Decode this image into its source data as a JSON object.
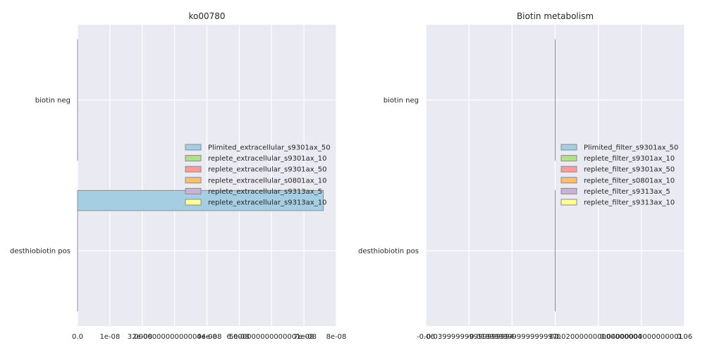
{
  "chart_data": [
    {
      "type": "bar",
      "orientation": "horizontal",
      "title": "ko00780",
      "categories": [
        "biotin neg",
        "desthiobiotin pos"
      ],
      "xlim": [
        0,
        8e-08
      ],
      "x_ticks": [
        "0.0",
        "1e-08",
        "2e-08",
        "3.0000000000000004e-08",
        "4e-08",
        "5e-08",
        "6.000000000000001e-08",
        "7e-08",
        "8e-08"
      ],
      "grid": true,
      "legend_position": "right-center",
      "series": [
        {
          "name": "Plimited_extracellular_s9301ax_50",
          "color": "#a6cee3",
          "values": [
            0,
            7.6e-08
          ]
        },
        {
          "name": "replete_extracellular_s9301ax_10",
          "color": "#b2df8a",
          "values": [
            0,
            0
          ]
        },
        {
          "name": "replete_extracellular_s9301ax_50",
          "color": "#fb9a99",
          "values": [
            0,
            0
          ]
        },
        {
          "name": "replete_extracellular_s0801ax_10",
          "color": "#fdbf6f",
          "values": [
            0,
            0
          ]
        },
        {
          "name": "replete_extracellular_s9313ax_5",
          "color": "#cab2d6",
          "values": [
            0,
            0
          ]
        },
        {
          "name": "replete_extracellular_s9313ax_10",
          "color": "#ffff99",
          "values": [
            0,
            0
          ]
        }
      ]
    },
    {
      "type": "bar",
      "orientation": "horizontal",
      "title": "Biotin metabolism",
      "categories": [
        "biotin neg",
        "desthiobiotin pos"
      ],
      "xlim": [
        -0.06,
        0.06
      ],
      "x_ticks": [
        "-0.06",
        "-0.039999999999999994",
        "-0.019999999999999997",
        "0.0",
        "0.020000000000000004",
        "0.04000000000000001",
        "0.06"
      ],
      "grid": true,
      "legend_position": "right-center",
      "series": [
        {
          "name": "Plimited_filter_s9301ax_50",
          "color": "#a6cee3",
          "values": [
            0,
            0
          ]
        },
        {
          "name": "replete_filter_s9301ax_10",
          "color": "#b2df8a",
          "values": [
            0,
            0
          ]
        },
        {
          "name": "replete_filter_s9301ax_50",
          "color": "#fb9a99",
          "values": [
            0,
            0
          ]
        },
        {
          "name": "replete_filter_s0801ax_10",
          "color": "#fdbf6f",
          "values": [
            0,
            0
          ]
        },
        {
          "name": "replete_filter_s9313ax_5",
          "color": "#cab2d6",
          "values": [
            0,
            0
          ]
        },
        {
          "name": "replete_filter_s9313ax_10",
          "color": "#ffff99",
          "values": [
            0,
            0
          ]
        }
      ]
    }
  ],
  "colors": {
    "plot_bg": "#eaeaf2",
    "grid": "#ffffff",
    "bar_edge": "#8c8c8c",
    "text": "#262626"
  }
}
